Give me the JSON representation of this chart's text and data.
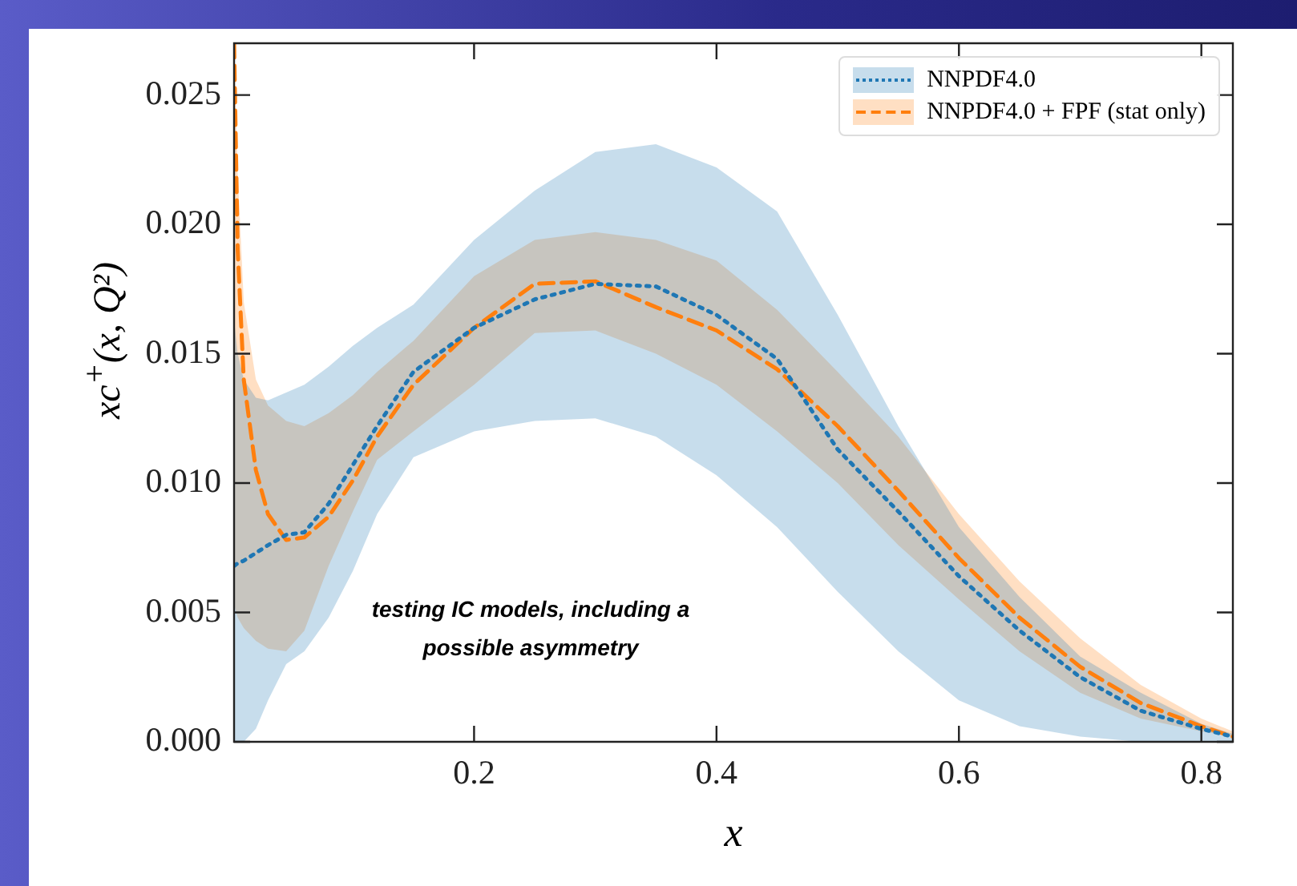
{
  "chart_data": {
    "type": "line",
    "xlabel": "x",
    "ylabel": "xc$^{+}$(x, Q²)",
    "x": [
      0.002,
      0.005,
      0.01,
      0.02,
      0.03,
      0.045,
      0.06,
      0.08,
      0.1,
      0.12,
      0.15,
      0.2,
      0.25,
      0.3,
      0.35,
      0.4,
      0.45,
      0.5,
      0.55,
      0.6,
      0.65,
      0.7,
      0.75,
      0.8,
      0.826
    ],
    "series": [
      {
        "name": "NNPDF4.0",
        "color": "#1f77b4",
        "line_style": "dotted",
        "values": [
          0.0068,
          0.0069,
          0.007,
          0.0073,
          0.0076,
          0.008,
          0.0081,
          0.0092,
          0.0107,
          0.0122,
          0.0143,
          0.016,
          0.0171,
          0.0177,
          0.0176,
          0.0165,
          0.0148,
          0.0113,
          0.0089,
          0.0064,
          0.0043,
          0.0025,
          0.0012,
          0.0005,
          0.0002
        ],
        "lower": [
          0,
          0,
          0,
          0.0005,
          0.0016,
          0.003,
          0.0035,
          0.0048,
          0.0066,
          0.0088,
          0.011,
          0.012,
          0.0124,
          0.0125,
          0.0118,
          0.0103,
          0.0083,
          0.0058,
          0.0035,
          0.0016,
          0.0006,
          0.0002,
          0,
          0,
          0
        ],
        "upper": [
          0.0163,
          0.015,
          0.014,
          0.0133,
          0.0132,
          0.0135,
          0.0138,
          0.0145,
          0.0153,
          0.016,
          0.0169,
          0.0194,
          0.0213,
          0.0228,
          0.0231,
          0.0222,
          0.0205,
          0.0165,
          0.0122,
          0.0083,
          0.0056,
          0.0033,
          0.0019,
          0.0007,
          0.0003
        ]
      },
      {
        "name": "NNPDF4.0 + FPF (stat only)",
        "color": "#ff7f0e",
        "line_style": "dashed",
        "values": [
          0.027,
          0.019,
          0.014,
          0.0105,
          0.0088,
          0.0078,
          0.0079,
          0.0087,
          0.0101,
          0.0118,
          0.0138,
          0.016,
          0.0177,
          0.0178,
          0.0168,
          0.0159,
          0.0144,
          0.0122,
          0.0097,
          0.0071,
          0.0048,
          0.0029,
          0.0015,
          0.0006,
          0.0002
        ],
        "lower": [
          0.0053,
          0.0048,
          0.0044,
          0.0039,
          0.0036,
          0.0035,
          0.0043,
          0.0068,
          0.0089,
          0.0109,
          0.012,
          0.0138,
          0.0158,
          0.0159,
          0.015,
          0.0138,
          0.012,
          0.01,
          0.0076,
          0.0055,
          0.0035,
          0.0019,
          0.0009,
          0.0004,
          0.0002
        ],
        "upper": [
          0.027,
          0.022,
          0.017,
          0.014,
          0.013,
          0.0124,
          0.0122,
          0.0127,
          0.0134,
          0.0143,
          0.0155,
          0.018,
          0.0194,
          0.0197,
          0.0194,
          0.0186,
          0.0167,
          0.0143,
          0.0118,
          0.0088,
          0.0062,
          0.004,
          0.0022,
          0.0009,
          0.0004
        ]
      }
    ],
    "xlim": [
      0.002,
      0.826
    ],
    "xticks": [
      0.2,
      0.4,
      0.6,
      0.8
    ],
    "ylim": [
      0,
      0.027
    ],
    "yticks": [
      {
        "value": 0,
        "label": "0.000"
      },
      {
        "value": 0.005,
        "label": "0.005"
      },
      {
        "value": 0.01,
        "label": "0.010"
      },
      {
        "value": 0.015,
        "label": "0.015"
      },
      {
        "value": 0.02,
        "label": "0.020"
      },
      {
        "value": 0.025,
        "label": "0.025"
      }
    ],
    "grid": false,
    "legend": "top right",
    "marker": "none",
    "annotations": [
      "testing IC models, including a possible asymmetry"
    ]
  }
}
